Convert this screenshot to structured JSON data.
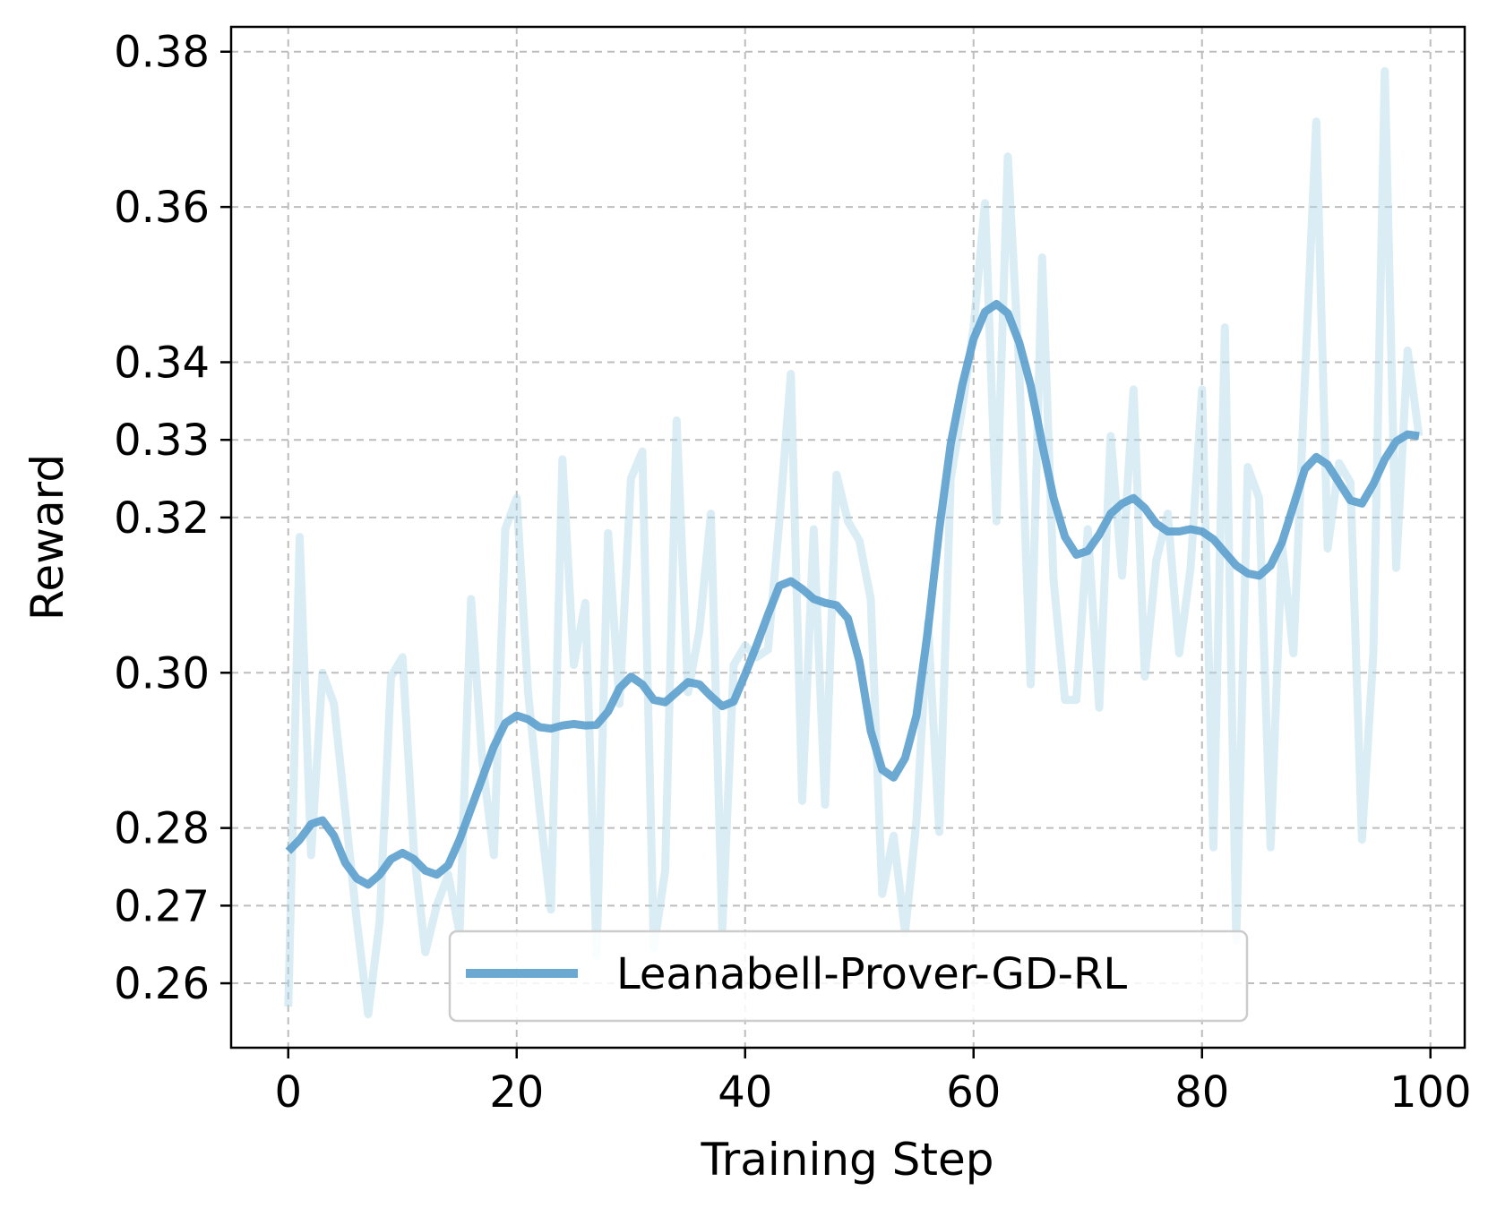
{
  "chart_data": {
    "type": "line",
    "title": "",
    "xlabel": "Training Step",
    "ylabel": "Reward",
    "xlim": [
      -5,
      103
    ],
    "ylim": [
      0.2517,
      0.3832
    ],
    "grid": true,
    "legend_position": "lower-center",
    "xticks": [
      0,
      20,
      40,
      60,
      80,
      100
    ],
    "xtick_labels": [
      "0",
      "20",
      "40",
      "60",
      "80",
      "100"
    ],
    "yticks": [
      0.26,
      0.27,
      0.28,
      0.3,
      0.32,
      0.33,
      0.34,
      0.36,
      0.38
    ],
    "ytick_labels": [
      "0.26",
      "0.27",
      "0.28",
      "0.30",
      "0.32",
      "0.33",
      "0.34",
      "0.36",
      "0.38"
    ],
    "colors": {
      "raw": "#add8e6",
      "smoothed": "#5b9fcd",
      "axes": "#000000",
      "grid": "#bdbdbd"
    },
    "series": [
      {
        "name": "Leanabell-Prover-GD-RL (raw)",
        "role": "raw",
        "x": [
          0,
          1,
          2,
          3,
          4,
          5,
          6,
          7,
          8,
          9,
          10,
          11,
          12,
          13,
          14,
          15,
          16,
          17,
          18,
          19,
          20,
          21,
          22,
          23,
          24,
          25,
          26,
          27,
          28,
          29,
          30,
          31,
          32,
          33,
          34,
          35,
          36,
          37,
          38,
          39,
          40,
          41,
          42,
          43,
          44,
          45,
          46,
          47,
          48,
          49,
          50,
          51,
          52,
          53,
          54,
          55,
          56,
          57,
          58,
          59,
          60,
          61,
          62,
          63,
          64,
          65,
          66,
          67,
          68,
          69,
          70,
          71,
          72,
          73,
          74,
          75,
          76,
          77,
          78,
          79,
          80,
          81,
          82,
          83,
          84,
          85,
          86,
          87,
          88,
          89,
          90,
          91,
          92,
          93,
          94,
          95,
          96,
          97,
          98,
          99
        ],
        "values": [
          0.257,
          0.3175,
          0.2765,
          0.3,
          0.296,
          0.282,
          0.268,
          0.256,
          0.268,
          0.2995,
          0.302,
          0.277,
          0.264,
          0.27,
          0.274,
          0.2665,
          0.3095,
          0.2885,
          0.2765,
          0.3185,
          0.3225,
          0.2975,
          0.2825,
          0.2695,
          0.3275,
          0.301,
          0.309,
          0.2635,
          0.318,
          0.296,
          0.325,
          0.3285,
          0.2645,
          0.2745,
          0.3325,
          0.2975,
          0.3055,
          0.3205,
          0.267,
          0.301,
          0.3035,
          0.302,
          0.303,
          0.3195,
          0.3385,
          0.2835,
          0.3185,
          0.283,
          0.3255,
          0.3195,
          0.317,
          0.3095,
          0.2715,
          0.279,
          0.2665,
          0.281,
          0.3065,
          0.2795,
          0.325,
          0.334,
          0.3445,
          0.3605,
          0.3195,
          0.3665,
          0.339,
          0.2985,
          0.3535,
          0.312,
          0.2965,
          0.2965,
          0.3185,
          0.2955,
          0.3305,
          0.3125,
          0.3365,
          0.2995,
          0.3145,
          0.3205,
          0.3025,
          0.3135,
          0.3365,
          0.2775,
          0.3445,
          0.2655,
          0.3265,
          0.3225,
          0.2775,
          0.3165,
          0.3025,
          0.3375,
          0.371,
          0.316,
          0.327,
          0.3245,
          0.2785,
          0.3025,
          0.3775,
          0.3135,
          0.3415,
          0.3305
        ]
      },
      {
        "name": "Leanabell-Prover-GD-RL",
        "role": "smoothed",
        "x": [
          0,
          1,
          2,
          3,
          4,
          5,
          6,
          7,
          8,
          9,
          10,
          11,
          12,
          13,
          14,
          15,
          16,
          17,
          18,
          19,
          20,
          21,
          22,
          23,
          24,
          25,
          26,
          27,
          28,
          29,
          30,
          31,
          32,
          33,
          34,
          35,
          36,
          37,
          38,
          39,
          40,
          41,
          42,
          43,
          44,
          45,
          46,
          47,
          48,
          49,
          50,
          51,
          52,
          53,
          54,
          55,
          56,
          57,
          58,
          59,
          60,
          61,
          62,
          63,
          64,
          65,
          66,
          67,
          68,
          69,
          70,
          71,
          72,
          73,
          74,
          75,
          76,
          77,
          78,
          79,
          80,
          81,
          82,
          83,
          84,
          85,
          86,
          87,
          88,
          89,
          90,
          91,
          92,
          93,
          94,
          95,
          96,
          97,
          98,
          99
        ],
        "values": [
          0.277,
          0.2785,
          0.2805,
          0.281,
          0.279,
          0.2755,
          0.2735,
          0.2727,
          0.274,
          0.276,
          0.2768,
          0.276,
          0.2745,
          0.274,
          0.2752,
          0.2785,
          0.2825,
          0.2865,
          0.2905,
          0.2935,
          0.2945,
          0.294,
          0.293,
          0.2928,
          0.2932,
          0.2934,
          0.2932,
          0.2933,
          0.295,
          0.298,
          0.2995,
          0.2985,
          0.2965,
          0.2962,
          0.2975,
          0.2988,
          0.2985,
          0.297,
          0.2957,
          0.2963,
          0.2998,
          0.3035,
          0.3075,
          0.3112,
          0.3118,
          0.3108,
          0.3095,
          0.309,
          0.3087,
          0.307,
          0.3015,
          0.2925,
          0.2875,
          0.2865,
          0.289,
          0.2945,
          0.3055,
          0.3185,
          0.3295,
          0.337,
          0.343,
          0.3465,
          0.3475,
          0.3463,
          0.3425,
          0.337,
          0.3295,
          0.3225,
          0.3175,
          0.3152,
          0.3157,
          0.3178,
          0.3205,
          0.3218,
          0.3225,
          0.3212,
          0.3192,
          0.3182,
          0.3182,
          0.3185,
          0.3182,
          0.3172,
          0.3155,
          0.3138,
          0.3128,
          0.3125,
          0.3138,
          0.3168,
          0.3215,
          0.3262,
          0.3278,
          0.3268,
          0.3245,
          0.3222,
          0.3218,
          0.3243,
          0.3275,
          0.3298,
          0.3307,
          0.3305
        ]
      }
    ],
    "legend": [
      {
        "label": "Leanabell-Prover-GD-RL",
        "series": "smoothed"
      }
    ]
  }
}
